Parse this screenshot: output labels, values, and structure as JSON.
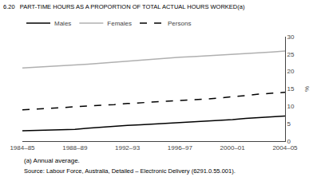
{
  "chart_data": {
    "type": "line",
    "title": "6.20   PART-TIME HOURS AS A PROPORTION OF TOTAL ACTUAL HOURS WORKED(a)",
    "ylabel": "%",
    "categories": [
      "1984–85",
      null,
      null,
      null,
      "1988–89",
      null,
      null,
      null,
      "1992–93",
      null,
      null,
      null,
      "1996–97",
      null,
      null,
      null,
      "2000–01",
      null,
      null,
      null,
      "2004–05"
    ],
    "series": [
      {
        "name": "Males",
        "color": "#000000",
        "line_style": "solid",
        "values": [
          3.0,
          3.1,
          3.1,
          3.2,
          3.4,
          3.7,
          4.0,
          4.2,
          4.5,
          4.7,
          4.9,
          5.1,
          5.3,
          5.5,
          5.7,
          5.9,
          6.2,
          6.5,
          6.8,
          7.0,
          7.2
        ]
      },
      {
        "name": "Females",
        "color": "#b0b0b0",
        "line_style": "solid",
        "values": [
          21.0,
          21.2,
          21.4,
          21.6,
          21.9,
          22.1,
          22.4,
          22.7,
          23.0,
          23.3,
          23.6,
          23.9,
          24.1,
          24.3,
          24.5,
          24.7,
          24.9,
          25.1,
          25.3,
          25.6,
          25.9
        ]
      },
      {
        "name": "Persons",
        "color": "#000000",
        "line_style": "dashed",
        "values": [
          9.0,
          9.2,
          9.4,
          9.6,
          9.8,
          10.0,
          10.3,
          10.5,
          10.8,
          11.0,
          11.2,
          11.4,
          11.6,
          11.8,
          12.1,
          12.4,
          12.7,
          13.1,
          13.5,
          13.8,
          14.0
        ]
      }
    ],
    "ylim": [
      0,
      30
    ],
    "yticks": [
      0,
      5,
      10,
      15,
      20,
      25,
      30
    ],
    "grid": false,
    "legend": "upper left",
    "annotations": [
      "(a) Annual average.",
      "Source: Labour Force, Australia, Detailed – Electronic Delivery (6291.0.55.001)."
    ]
  }
}
